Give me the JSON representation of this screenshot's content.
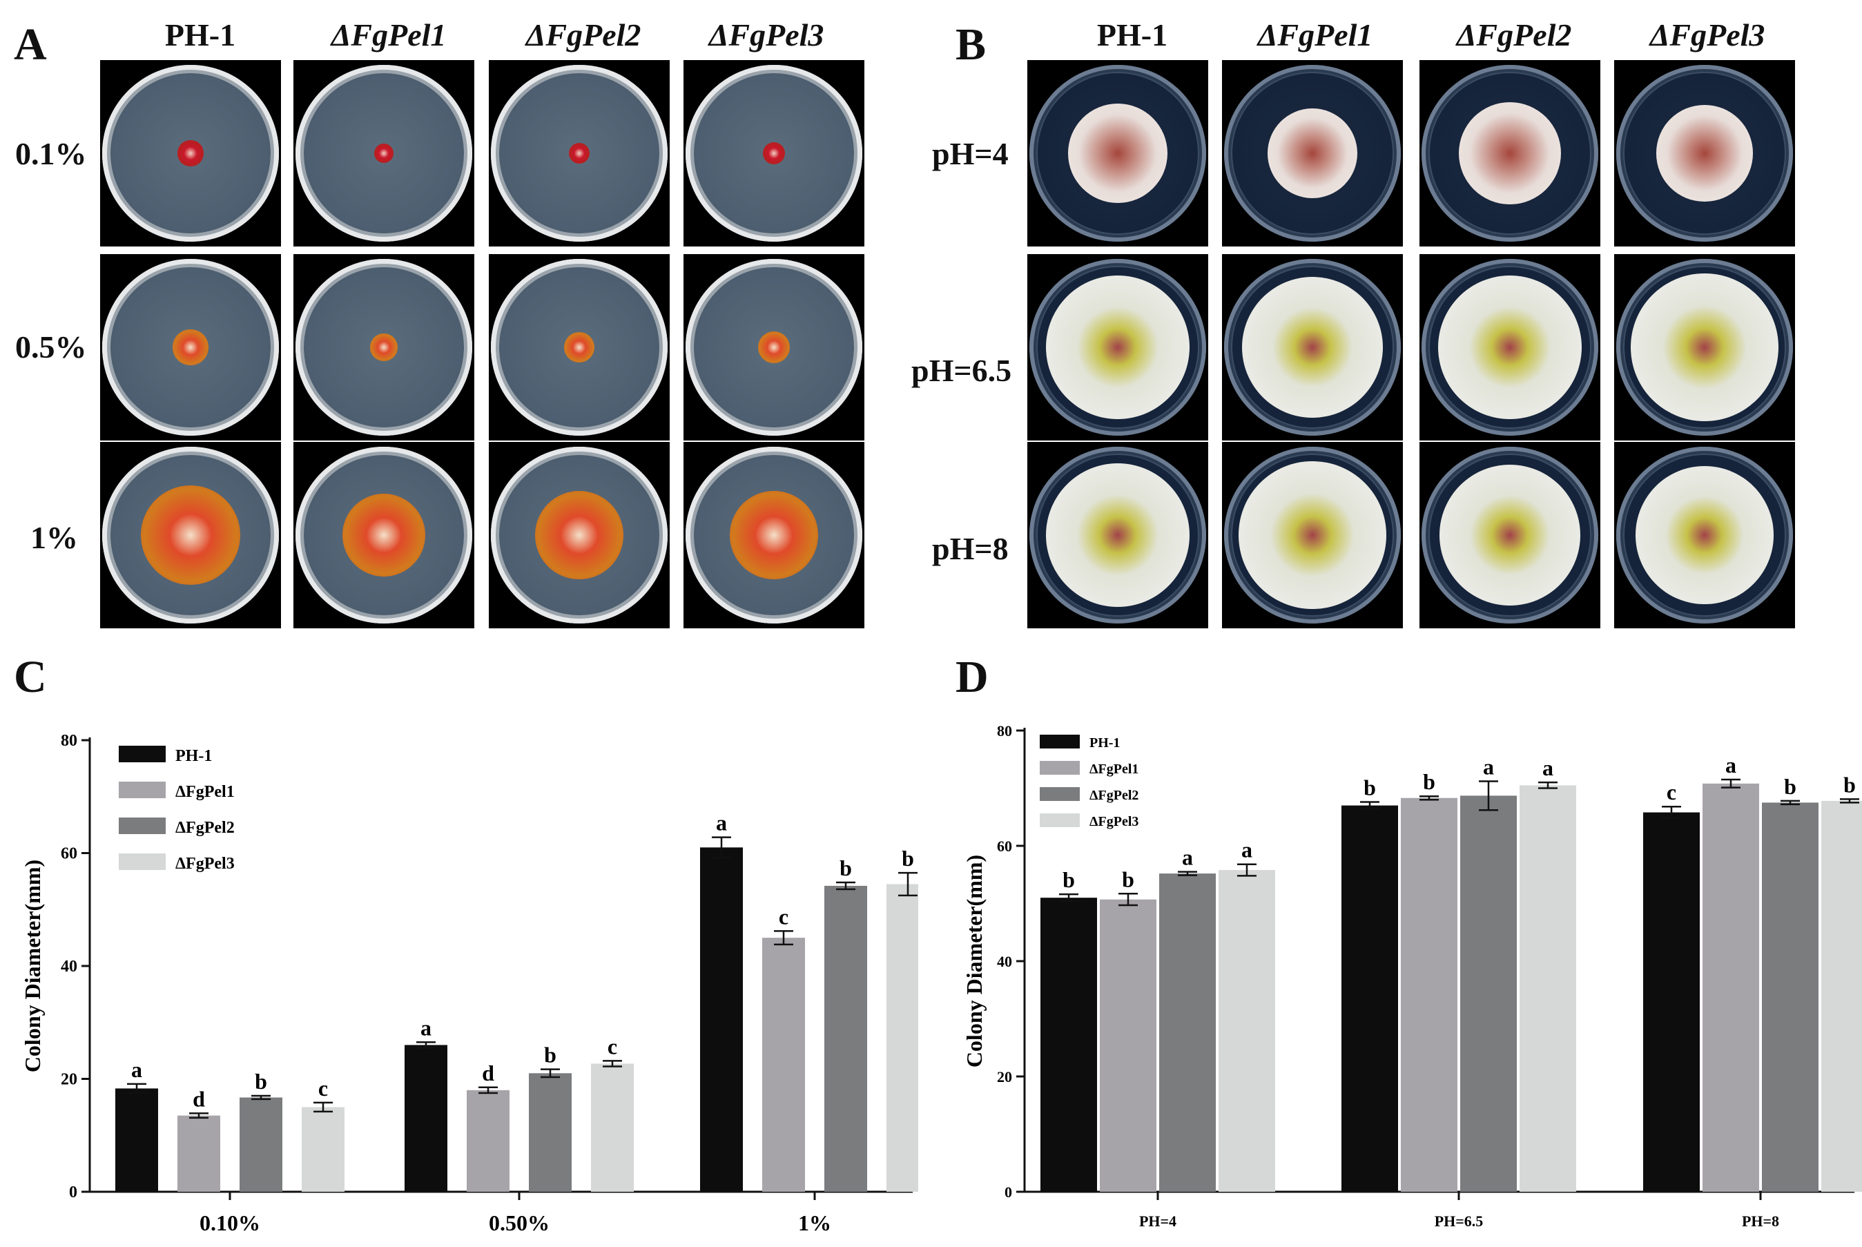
{
  "panels": {
    "A": {
      "letter": "A",
      "columns": [
        "PH-1",
        "ΔFgPel1",
        "ΔFgPel2",
        "ΔFgPel3"
      ],
      "rows": [
        "0.1%",
        "0.5%",
        "1%"
      ]
    },
    "B": {
      "letter": "B",
      "columns": [
        "PH-1",
        "ΔFgPel1",
        "ΔFgPel2",
        "ΔFgPel3"
      ],
      "rows": [
        "pH=4",
        "pH=6.5",
        "pH=8"
      ]
    },
    "C": {
      "letter": "C"
    },
    "D": {
      "letter": "D"
    }
  },
  "colors": {
    "PH-1": "#0d0d0d",
    "ΔFgPel1": "#a7a4a9",
    "ΔFgPel2": "#7b7c7e",
    "ΔFgPel3": "#d6d8d8"
  },
  "chart_data": [
    {
      "id": "C",
      "type": "bar",
      "title": "",
      "xlabel": "",
      "ylabel": "Colony Diameter(mm)",
      "ylim": [
        0,
        80
      ],
      "yticks": [
        0,
        20,
        40,
        60,
        80
      ],
      "categories": [
        "0.10%",
        "0.50%",
        "1%"
      ],
      "legend_position": "top-left",
      "series": [
        {
          "name": "PH-1",
          "values": [
            18.3,
            26.0,
            61.0
          ],
          "errors": [
            0.8,
            0.5,
            1.8
          ],
          "letters": [
            "a",
            "a",
            "a"
          ]
        },
        {
          "name": "ΔFgPel1",
          "values": [
            13.5,
            18.0,
            45.0
          ],
          "errors": [
            0.4,
            0.5,
            1.2
          ],
          "letters": [
            "d",
            "d",
            "c"
          ]
        },
        {
          "name": "ΔFgPel2",
          "values": [
            16.7,
            21.0,
            54.2
          ],
          "errors": [
            0.3,
            0.7,
            0.6
          ],
          "letters": [
            "b",
            "b",
            "b"
          ]
        },
        {
          "name": "ΔFgPel3",
          "values": [
            15.0,
            22.7,
            54.5
          ],
          "errors": [
            0.8,
            0.5,
            2.0
          ],
          "letters": [
            "c",
            "c",
            "b"
          ]
        }
      ]
    },
    {
      "id": "D",
      "type": "bar",
      "title": "",
      "xlabel": "",
      "ylabel": "Colony Diameter(mm)",
      "ylim": [
        0,
        80
      ],
      "yticks": [
        0,
        20,
        40,
        60,
        80
      ],
      "categories": [
        "PH=4",
        "PH=6.5",
        "PH=8"
      ],
      "legend_position": "top-left",
      "series": [
        {
          "name": "PH-1",
          "values": [
            51.0,
            67.0,
            65.8
          ],
          "errors": [
            0.6,
            0.6,
            1.0
          ],
          "letters": [
            "b",
            "b",
            "c"
          ]
        },
        {
          "name": "ΔFgPel1",
          "values": [
            50.7,
            68.3,
            70.8
          ],
          "errors": [
            1.0,
            0.3,
            0.7
          ],
          "letters": [
            "b",
            "b",
            "a"
          ]
        },
        {
          "name": "ΔFgPel2",
          "values": [
            55.2,
            68.7,
            67.5
          ],
          "errors": [
            0.3,
            2.5,
            0.3
          ],
          "letters": [
            "a",
            "a",
            "b"
          ]
        },
        {
          "name": "ΔFgPel3",
          "values": [
            55.8,
            70.5,
            67.8
          ],
          "errors": [
            1.0,
            0.5,
            0.3
          ],
          "letters": [
            "a",
            "a",
            "b"
          ]
        }
      ]
    }
  ]
}
